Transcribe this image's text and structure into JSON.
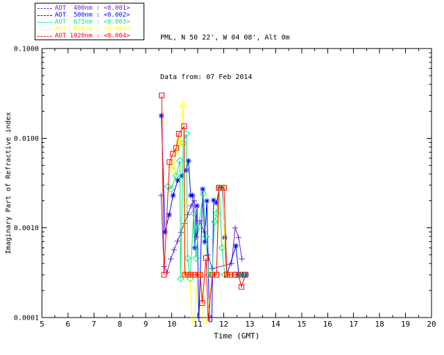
{
  "header": {
    "site": "PML, N 50 22', W 04 08', Alt 0m",
    "data_from": "Data from: 07 Feb 2014"
  },
  "legend": {
    "items": [
      {
        "label": "AOT  400nm : <0.001>",
        "color": "#6B21C8",
        "marker": "plus"
      },
      {
        "label": "AOT  500nm : <0.002>",
        "color": "#0000FF",
        "marker": "asterisk"
      },
      {
        "label": "AOT  675nm : <0.003>",
        "color": "#00E87C",
        "marker": "diamond"
      },
      {
        "label": "AOT  870nm : <0.004>",
        "color": "#FFFF00",
        "marker": "triangle"
      },
      {
        "label": "AOT 1020nm : <0.004>",
        "color": "#FF0000",
        "marker": "square"
      }
    ]
  },
  "chart_data": {
    "type": "line",
    "title": "",
    "xlabel": "Time (GMT)",
    "ylabel": "Imaginary Part of Refractive index",
    "xlim": [
      5,
      20
    ],
    "ylim": [
      0.0001,
      0.1
    ],
    "yscale": "log",
    "grid": false,
    "legend_position": "top-left",
    "xticks": [
      5,
      6,
      7,
      8,
      9,
      10,
      11,
      12,
      13,
      14,
      15,
      16,
      17,
      18,
      19,
      20
    ],
    "yticks": [
      {
        "v": 0.1,
        "label": "0.1000"
      },
      {
        "v": 0.01,
        "label": "0.0100"
      },
      {
        "v": 0.001,
        "label": "0.0010"
      },
      {
        "v": 0.0001,
        "label": "0.0001"
      }
    ],
    "series": [
      {
        "name": "AOT 400nm",
        "color": "#6B21C8",
        "marker": "plus",
        "points": [
          [
            9.59,
            0.0023
          ],
          [
            9.7,
            0.00037
          ],
          [
            9.82,
            0.00032
          ],
          [
            9.96,
            0.00045
          ],
          [
            10.09,
            0.00057
          ],
          [
            10.22,
            0.00071
          ],
          [
            10.35,
            0.00089
          ],
          [
            10.48,
            0.00112
          ],
          [
            10.61,
            0.0014
          ],
          [
            10.74,
            0.00176
          ],
          [
            10.87,
            0.002
          ],
          [
            10.95,
            0.00079
          ],
          [
            11.08,
            0.0012
          ],
          [
            11.24,
            0.0009
          ],
          [
            11.4,
            0.0005
          ],
          [
            11.55,
            0.00035
          ],
          [
            12.3,
            0.0004
          ],
          [
            12.44,
            0.001
          ],
          [
            12.57,
            0.00078
          ],
          [
            12.7,
            0.00045
          ]
        ]
      },
      {
        "name": "AOT 500nm",
        "color": "#0000FF",
        "marker": "asterisk",
        "points": [
          [
            9.6,
            0.0178
          ],
          [
            9.74,
            0.0009
          ],
          [
            9.9,
            0.0014
          ],
          [
            10.05,
            0.0023
          ],
          [
            10.23,
            0.0034
          ],
          [
            10.39,
            0.0038
          ],
          [
            10.55,
            0.0044
          ],
          [
            10.64,
            0.0056
          ],
          [
            10.73,
            0.0023
          ],
          [
            10.8,
            0.0023
          ],
          [
            10.89,
            0.0006
          ],
          [
            10.97,
            0.00176
          ],
          [
            11.04,
            9e-05
          ],
          [
            11.19,
            0.0027
          ],
          [
            11.27,
            0.0007
          ],
          [
            11.35,
            0.002
          ],
          [
            11.45,
            9e-05
          ],
          [
            11.54,
            9e-05
          ],
          [
            11.61,
            0.00203
          ],
          [
            11.72,
            0.0019
          ],
          [
            11.83,
            0.0028
          ],
          [
            11.95,
            0.0028
          ],
          [
            12.04,
            0.00078
          ],
          [
            12.12,
            0.0003
          ],
          [
            12.47,
            0.00063
          ],
          [
            12.58,
            0.0003
          ],
          [
            12.72,
            0.0003
          ],
          [
            12.84,
            0.0003
          ]
        ]
      },
      {
        "name": "AOT 675nm",
        "color": "#00E87C",
        "marker": "diamond",
        "points": [
          [
            9.85,
            0.0029
          ],
          [
            9.97,
            0.0027
          ],
          [
            10.16,
            0.0038
          ],
          [
            10.31,
            0.0056
          ],
          [
            10.34,
            0.00027
          ],
          [
            10.44,
            0.0088
          ],
          [
            10.55,
            0.0112
          ],
          [
            10.61,
            0.00046
          ],
          [
            10.71,
            0.00027
          ],
          [
            10.84,
            0.00145
          ],
          [
            10.93,
            0.00046
          ],
          [
            11.03,
            0.00103
          ],
          [
            11.21,
            0.0024
          ],
          [
            11.31,
            0.0008
          ],
          [
            11.42,
            0.0003
          ],
          [
            11.55,
            0.0003
          ],
          [
            11.64,
            0.00117
          ],
          [
            11.73,
            0.00145
          ],
          [
            11.83,
            0.0028
          ],
          [
            11.93,
            0.0006
          ],
          [
            12.04,
            0.0003
          ],
          [
            12.45,
            0.0003
          ],
          [
            12.58,
            0.0003
          ],
          [
            12.72,
            0.0003
          ],
          [
            12.84,
            0.0003
          ]
        ]
      },
      {
        "name": "AOT 870nm",
        "color": "#FFFF00",
        "marker": "triangle",
        "points": [
          [
            9.96,
            0.005
          ],
          [
            10.07,
            0.0044
          ],
          [
            10.15,
            0.007
          ],
          [
            10.25,
            0.0094
          ],
          [
            10.33,
            0.0086
          ],
          [
            10.44,
            0.024
          ],
          [
            10.49,
            0.0003
          ],
          [
            10.6,
            0.0003
          ],
          [
            10.7,
            0.0003
          ],
          [
            10.78,
            8e-05
          ],
          [
            10.87,
            8e-05
          ],
          [
            11.0,
            0.0003
          ],
          [
            11.13,
            0.0003
          ],
          [
            11.22,
            8e-05
          ],
          [
            11.33,
            8e-05
          ],
          [
            11.56,
            0.0003
          ],
          [
            11.72,
            0.0003
          ],
          [
            11.83,
            0.0028
          ],
          [
            11.97,
            0.0028
          ],
          [
            12.08,
            0.0003
          ],
          [
            12.2,
            0.0003
          ]
        ]
      },
      {
        "name": "AOT 1020nm",
        "color": "#FF0000",
        "marker": "square",
        "points": [
          [
            9.61,
            0.03
          ],
          [
            9.7,
            0.0003
          ],
          [
            9.91,
            0.0054
          ],
          [
            10.04,
            0.0067
          ],
          [
            10.17,
            0.0078
          ],
          [
            10.27,
            0.0112
          ],
          [
            10.47,
            0.0136
          ],
          [
            10.5,
            0.0003
          ],
          [
            10.62,
            0.0003
          ],
          [
            10.74,
            0.0003
          ],
          [
            10.88,
            0.0003
          ],
          [
            11.01,
            0.0003
          ],
          [
            11.09,
            0.0003
          ],
          [
            11.17,
            0.000145
          ],
          [
            11.32,
            0.00046
          ],
          [
            11.4,
            9e-05
          ],
          [
            11.56,
            0.0003
          ],
          [
            11.72,
            0.0003
          ],
          [
            11.81,
            0.0028
          ],
          [
            12.01,
            0.0028
          ],
          [
            12.12,
            0.0003
          ],
          [
            12.24,
            0.0003
          ],
          [
            12.44,
            0.0003
          ],
          [
            12.57,
            0.0003
          ],
          [
            12.68,
            0.00022
          ],
          [
            12.84,
            0.0003
          ]
        ]
      }
    ]
  }
}
